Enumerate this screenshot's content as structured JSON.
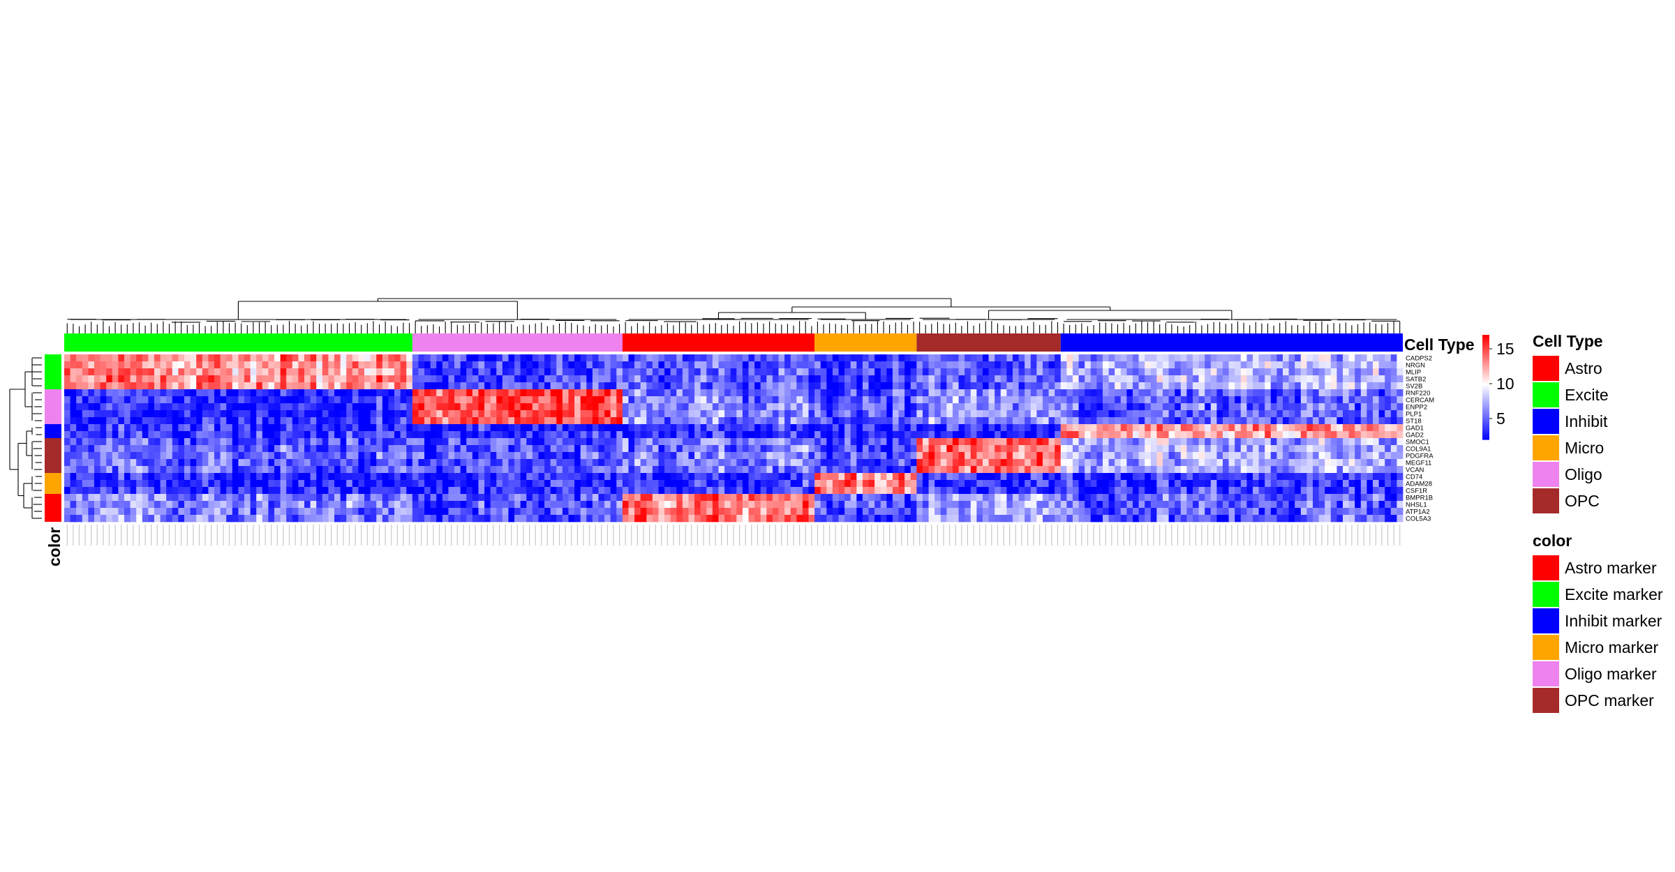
{
  "chart_data": {
    "type": "heatmap",
    "title": "",
    "column_annotation": {
      "title": "Cell Type",
      "groups": [
        {
          "name": "Excite",
          "color": "#00FF00",
          "n_cols": 58
        },
        {
          "name": "Oligo",
          "color": "#EE82EE",
          "n_cols": 35
        },
        {
          "name": "Astro",
          "color": "#FF0000",
          "n_cols": 32
        },
        {
          "name": "Micro",
          "color": "#FFA500",
          "n_cols": 17
        },
        {
          "name": "OPC",
          "color": "#A52A2A",
          "n_cols": 24
        },
        {
          "name": "Inhibit",
          "color": "#0000FF",
          "n_cols": 57
        }
      ]
    },
    "row_annotation": {
      "title": "color",
      "groups": [
        {
          "name": "Excite marker",
          "color": "#00FF00",
          "genes": [
            "CADPS2",
            "NRGN",
            "MLIP",
            "SATB2",
            "SV2B"
          ]
        },
        {
          "name": "Oligo marker",
          "color": "#EE82EE",
          "genes": [
            "RNF220",
            "CERCAM",
            "ENPP2",
            "PLP1",
            "ST18"
          ]
        },
        {
          "name": "Inhibit marker",
          "color": "#0000FF",
          "genes": [
            "GAD1",
            "GAD2"
          ]
        },
        {
          "name": "OPC marker",
          "color": "#A52A2A",
          "genes": [
            "SMOC1",
            "COL9A1",
            "PDGFRA",
            "MEGF11",
            "VCAN"
          ]
        },
        {
          "name": "Micro marker",
          "color": "#FFA500",
          "genes": [
            "CD74",
            "ADAM28",
            "CSF1R"
          ]
        },
        {
          "name": "Astro marker",
          "color": "#FF0000",
          "genes": [
            "BMPR1B",
            "NHSL1",
            "ATP1A2",
            "COL5A3"
          ]
        }
      ]
    },
    "genes": [
      "CADPS2",
      "NRGN",
      "MLIP",
      "SATB2",
      "SV2B",
      "RNF220",
      "CERCAM",
      "ENPP2",
      "PLP1",
      "ST18",
      "GAD1",
      "GAD2",
      "SMOC1",
      "COL9A1",
      "PDGFRA",
      "MEGF11",
      "VCAN",
      "CD74",
      "ADAM28",
      "CSF1R",
      "BMPR1B",
      "NHSL1",
      "ATP1A2",
      "COL5A3"
    ],
    "color_scale": {
      "ticks": [
        5,
        10,
        15
      ],
      "low": 2,
      "mid": 10,
      "high": 17,
      "low_color": "#0000FF",
      "mid_color": "#FFFFFF",
      "high_color": "#FF0000"
    },
    "group_mean_expression": {
      "Excite": {
        "Excite marker": 13,
        "Oligo marker": 3,
        "Inhibit marker": 3.5,
        "OPC marker": 5,
        "Micro marker": 3,
        "Astro marker": 6
      },
      "Oligo": {
        "Excite marker": 4,
        "Oligo marker": 15,
        "Inhibit marker": 3,
        "OPC marker": 4.5,
        "Micro marker": 3.5,
        "Astro marker": 4.5
      },
      "Astro": {
        "Excite marker": 4.5,
        "Oligo marker": 6,
        "Inhibit marker": 3,
        "OPC marker": 5.5,
        "Micro marker": 3.5,
        "Astro marker": 13.5
      },
      "Micro": {
        "Excite marker": 3.5,
        "Oligo marker": 4,
        "Inhibit marker": 3,
        "OPC marker": 4,
        "Micro marker": 13,
        "Astro marker": 4.5
      },
      "OPC": {
        "Excite marker": 5,
        "Oligo marker": 6.5,
        "Inhibit marker": 3,
        "OPC marker": 14,
        "Micro marker": 3.5,
        "Astro marker": 7
      },
      "Inhibit": {
        "Excite marker": 7.5,
        "Oligo marker": 5,
        "Inhibit marker": 12.5,
        "OPC marker": 7.5,
        "Micro marker": 3.5,
        "Astro marker": 5
      }
    },
    "row_dendrogram": true,
    "column_dendrogram": true,
    "legend_placement": "right"
  }
}
